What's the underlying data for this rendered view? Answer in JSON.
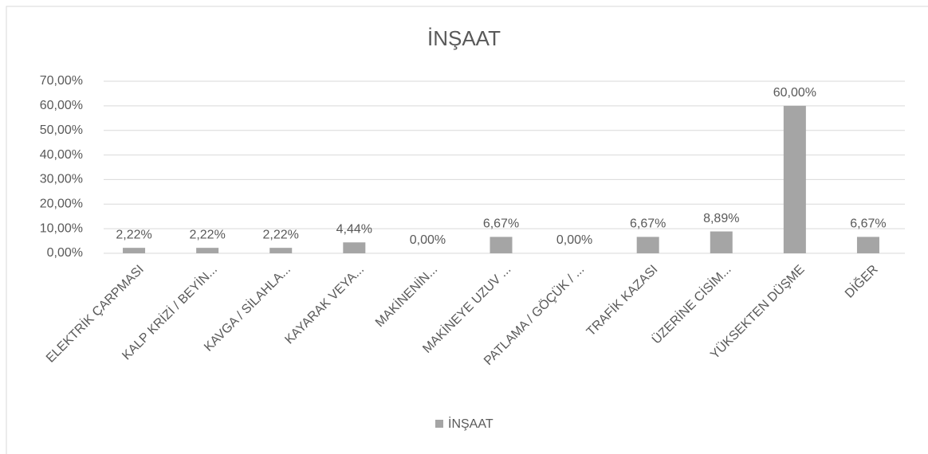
{
  "chart_data": {
    "type": "bar",
    "title": "İNŞAAT",
    "categories": [
      "ELEKTRİK ÇARPMASI",
      "KALP KRİZİ / BEYİN...",
      "KAVGA / SİLAHLA...",
      "KAYARAK VEYA...",
      "MAKİNENİN...",
      "MAKİNEYE UZUV ...",
      "PATLAMA / GÖÇÜK / ...",
      "TRAFİK KAZASI",
      "ÜZERİNE CİSİM...",
      "YÜKSEKTEN DÜŞME",
      "DİĞER"
    ],
    "series": [
      {
        "name": "İNŞAAT",
        "color": "#a5a5a5",
        "values": [
          2.22,
          2.22,
          2.22,
          4.44,
          0,
          6.67,
          0,
          6.67,
          8.89,
          60,
          6.67
        ],
        "value_labels": [
          "2,22%",
          "2,22%",
          "2,22%",
          "4,44%",
          "0,00%",
          "6,67%",
          "0,00%",
          "6,67%",
          "8,89%",
          "60,00%",
          "6,67%"
        ]
      }
    ],
    "ylim": [
      0,
      70
    ],
    "yticks": [
      {
        "value": 0,
        "label": "0,00%"
      },
      {
        "value": 10,
        "label": "10,00%"
      },
      {
        "value": 20,
        "label": "20,00%"
      },
      {
        "value": 30,
        "label": "30,00%"
      },
      {
        "value": 40,
        "label": "40,00%"
      },
      {
        "value": 50,
        "label": "50,00%"
      },
      {
        "value": 60,
        "label": "60,00%"
      },
      {
        "value": 70,
        "label": "70,00%"
      }
    ],
    "grid": true,
    "legend": "bottom"
  }
}
